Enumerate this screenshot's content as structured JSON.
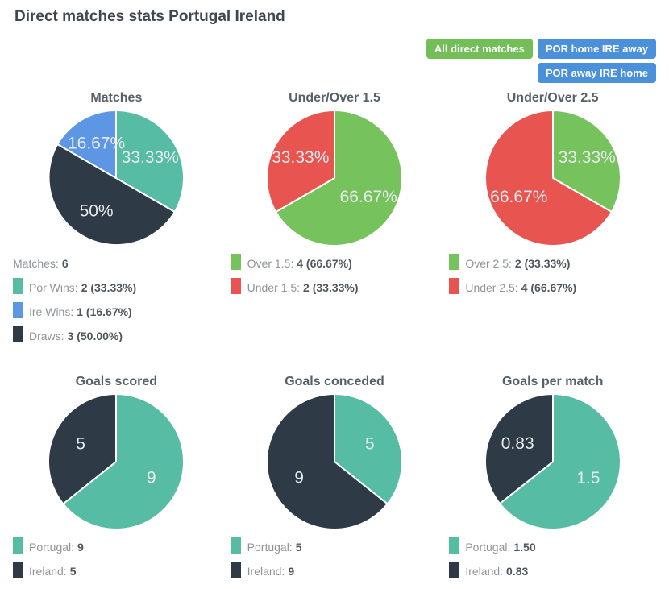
{
  "page": {
    "title": "Direct matches stats Portugal Ireland"
  },
  "filters": {
    "all_direct": "All direct matches",
    "por_home_ire_away": "POR home IRE away",
    "por_away_ire_home": "POR away IRE home"
  },
  "colors": {
    "teal": "#56bda4",
    "dark_slate": "#2e3a45",
    "blue": "#5d97e3",
    "green": "#76c35d",
    "red": "#e85450",
    "button_green": "#72bf58",
    "button_blue": "#4a90db"
  },
  "chart_data": [
    {
      "type": "pie",
      "title": "Matches",
      "slices": [
        {
          "label": "33.33%",
          "value": 33.33,
          "color": "#56bda4",
          "name": "Por Wins"
        },
        {
          "label": "50%",
          "value": 50,
          "color": "#2e3a45",
          "name": "Draws"
        },
        {
          "label": "16.67%",
          "value": 16.67,
          "color": "#5d97e3",
          "name": "Ire Wins"
        }
      ],
      "legend_header": {
        "label": "Matches:",
        "value": "6"
      },
      "legend": [
        {
          "color": "#56bda4",
          "label": "Por Wins:",
          "value": "2 (33.33%)"
        },
        {
          "color": "#5d97e3",
          "label": "Ire Wins:",
          "value": "1 (16.67%)"
        },
        {
          "color": "#2e3a45",
          "label": "Draws:",
          "value": "3 (50.00%)"
        }
      ]
    },
    {
      "type": "pie",
      "title": "Under/Over 1.5",
      "slices": [
        {
          "label": "66.67%",
          "value": 66.67,
          "color": "#76c35d",
          "name": "Over 1.5"
        },
        {
          "label": "33.33%",
          "value": 33.33,
          "color": "#e85450",
          "name": "Under 1.5"
        }
      ],
      "legend": [
        {
          "color": "#76c35d",
          "label": "Over 1.5:",
          "value": "4 (66.67%)"
        },
        {
          "color": "#e85450",
          "label": "Under 1.5:",
          "value": "2 (33.33%)"
        }
      ]
    },
    {
      "type": "pie",
      "title": "Under/Over 2.5",
      "slices": [
        {
          "label": "33.33%",
          "value": 33.33,
          "color": "#76c35d",
          "name": "Over 2.5"
        },
        {
          "label": "66.67%",
          "value": 66.67,
          "color": "#e85450",
          "name": "Under 2.5"
        }
      ],
      "legend": [
        {
          "color": "#76c35d",
          "label": "Over 2.5:",
          "value": "2 (33.33%)"
        },
        {
          "color": "#e85450",
          "label": "Under 2.5:",
          "value": "4 (66.67%)"
        }
      ]
    },
    {
      "type": "pie",
      "title": "Goals scored",
      "slices": [
        {
          "label": "9",
          "value": 9,
          "color": "#56bda4",
          "name": "Portugal"
        },
        {
          "label": "5",
          "value": 5,
          "color": "#2e3a45",
          "name": "Ireland"
        }
      ],
      "legend": [
        {
          "color": "#56bda4",
          "label": "Portugal:",
          "value": "9"
        },
        {
          "color": "#2e3a45",
          "label": "Ireland:",
          "value": "5"
        }
      ]
    },
    {
      "type": "pie",
      "title": "Goals conceded",
      "slices": [
        {
          "label": "5",
          "value": 5,
          "color": "#56bda4",
          "name": "Portugal"
        },
        {
          "label": "9",
          "value": 9,
          "color": "#2e3a45",
          "name": "Ireland"
        }
      ],
      "legend": [
        {
          "color": "#56bda4",
          "label": "Portugal:",
          "value": "5"
        },
        {
          "color": "#2e3a45",
          "label": "Ireland:",
          "value": "9"
        }
      ]
    },
    {
      "type": "pie",
      "title": "Goals per match",
      "slices": [
        {
          "label": "1.5",
          "value": 1.5,
          "color": "#56bda4",
          "name": "Portugal"
        },
        {
          "label": "0.83",
          "value": 0.83,
          "color": "#2e3a45",
          "name": "Ireland"
        }
      ],
      "legend": [
        {
          "color": "#56bda4",
          "label": "Portugal:",
          "value": "1.50"
        },
        {
          "color": "#2e3a45",
          "label": "Ireland:",
          "value": "0.83"
        }
      ]
    }
  ]
}
